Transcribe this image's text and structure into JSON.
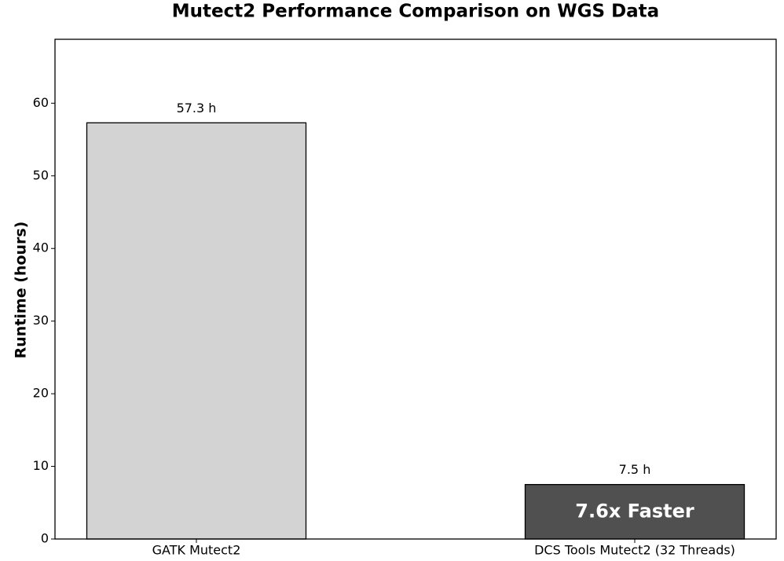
{
  "chart_data": {
    "type": "bar",
    "title": "Mutect2 Performance Comparison on WGS Data",
    "ylabel": "Runtime (hours)",
    "categories": [
      "GATK Mutect2",
      "DCS Tools Mutect2 (32 Threads)"
    ],
    "values": [
      57.3,
      7.5
    ],
    "value_labels": [
      "57.3 h",
      "7.5 h"
    ],
    "colors": [
      "#d3d3d3",
      "#505050"
    ],
    "annotation": "7.6x Faster",
    "ylim": [
      0,
      68.8
    ],
    "yticks": [
      0,
      10,
      20,
      30,
      40,
      50,
      60
    ],
    "grid": false
  }
}
